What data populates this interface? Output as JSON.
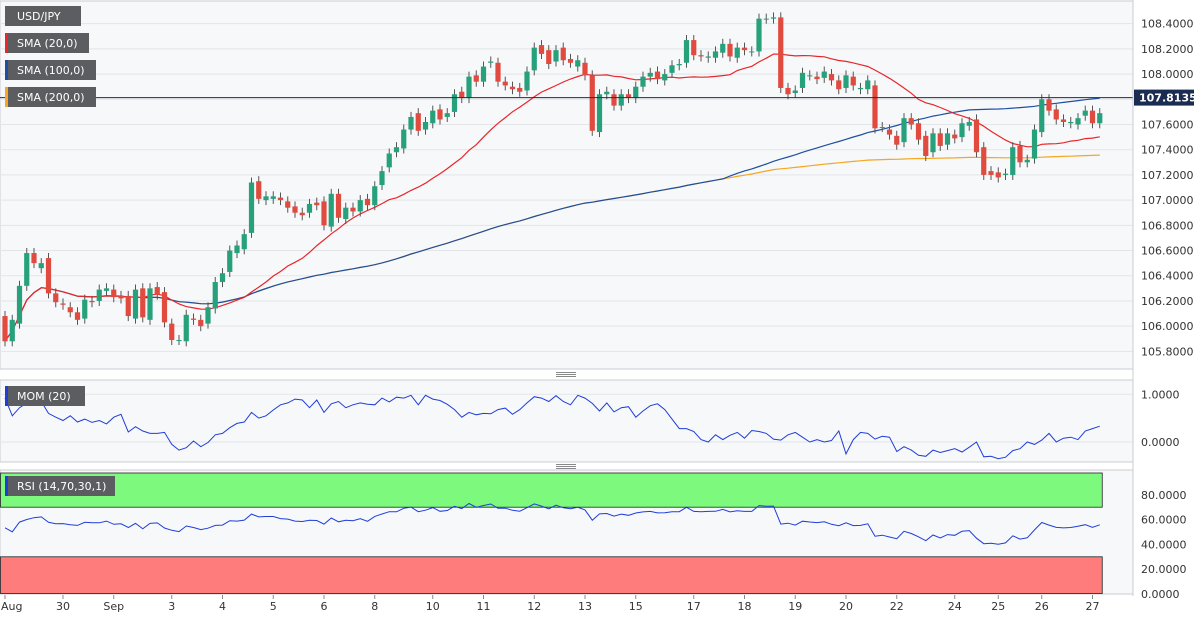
{
  "chart_data": [
    {
      "type": "candlestick",
      "title": "USD/JPY",
      "indicators": [
        {
          "name": "SMA (20,0)",
          "color": "#e8262b"
        },
        {
          "name": "SMA (100,0)",
          "color": "#1e4fa0"
        },
        {
          "name": "SMA (200,0)",
          "color": "#f5a623"
        }
      ],
      "current_price": 107.8135,
      "current_price_label": "107.8135",
      "ylim": [
        105.66,
        108.58
      ],
      "yticks": [
        105.8,
        106.0,
        106.2,
        106.4,
        106.6,
        106.8,
        107.0,
        107.2,
        107.4,
        107.6,
        107.8,
        108.0,
        108.2,
        108.4
      ],
      "ytick_labels": [
        "105.8000",
        "106.0000",
        "106.2000",
        "106.4000",
        "106.6000",
        "106.8000",
        "107.0000",
        "107.2000",
        "107.4000",
        "107.6000",
        "107.8000",
        "108.0000",
        "108.2000",
        "108.4000"
      ],
      "xlabels": [
        "Aug",
        "30",
        "Sep",
        "3",
        "4",
        "5",
        "6",
        "8",
        "10",
        "11",
        "12",
        "13",
        "15",
        "17",
        "18",
        "19",
        "20",
        "22",
        "24",
        "25",
        "26",
        "27"
      ],
      "x_label_bar_index": [
        0,
        8,
        15,
        23,
        30,
        37,
        44,
        51,
        59,
        66,
        73,
        80,
        87,
        95,
        102,
        109,
        116,
        123,
        131,
        137,
        143,
        150
      ],
      "candle_close_up_color": "#26a17b",
      "candle_close_down_color": "#e04a3f",
      "candles": {
        "open": [
          106.08,
          105.88,
          106.02,
          106.32,
          106.58,
          106.46,
          106.54,
          106.26,
          106.18,
          106.15,
          106.11,
          106.06,
          106.2,
          106.2,
          106.28,
          106.29,
          106.24,
          106.24,
          106.06,
          106.3,
          106.05,
          106.31,
          106.27,
          106.02,
          105.89,
          105.88,
          106.06,
          106.05,
          106.02,
          106.14,
          106.35,
          106.43,
          106.58,
          106.61,
          106.74,
          107.15,
          107.0,
          107.01,
          107.02,
          106.99,
          106.95,
          106.9,
          106.9,
          106.98,
          106.99,
          106.79,
          107.05,
          106.85,
          106.94,
          106.91,
          107.01,
          106.96,
          107.12,
          107.26,
          107.38,
          107.41,
          107.56,
          107.69,
          107.56,
          107.61,
          107.72,
          107.66,
          107.7,
          107.86,
          107.81,
          107.99,
          107.94,
          108.09,
          108.09,
          107.94,
          107.9,
          107.89,
          107.87,
          108.03,
          108.23,
          108.19,
          108.1,
          108.21,
          108.12,
          108.06,
          108.09,
          107.99,
          107.54,
          107.84,
          107.84,
          107.75,
          107.84,
          107.81,
          107.9,
          107.98,
          108.02,
          107.95,
          108.01,
          108.07,
          108.09,
          108.27,
          108.15,
          108.13,
          108.13,
          108.17,
          108.24,
          108.13,
          108.21,
          108.18,
          108.18,
          108.44,
          108.44,
          108.45,
          107.89,
          107.85,
          107.89,
          107.99,
          107.98,
          107.97,
          108.0,
          107.95,
          107.89,
          107.98,
          107.88,
          107.88,
          107.91,
          107.58,
          107.56,
          107.51,
          107.46,
          107.65,
          107.61,
          107.51,
          107.38,
          107.53,
          107.44,
          107.52,
          107.5,
          107.59,
          107.64,
          107.42,
          107.23,
          107.22,
          107.2,
          107.2,
          107.43,
          107.3,
          107.33,
          107.54,
          107.8,
          107.72,
          107.64,
          107.61,
          107.6,
          107.67,
          107.71,
          107.61
        ],
        "close": [
          105.88,
          106.05,
          106.32,
          106.58,
          106.5,
          106.5,
          106.26,
          106.19,
          106.17,
          106.11,
          106.05,
          106.21,
          106.19,
          106.29,
          106.3,
          106.23,
          106.22,
          106.08,
          106.29,
          106.07,
          106.3,
          106.25,
          106.03,
          105.89,
          105.89,
          106.09,
          106.05,
          106.0,
          106.15,
          106.35,
          106.42,
          106.6,
          106.64,
          106.73,
          107.14,
          107.01,
          107.03,
          107.03,
          107.0,
          106.94,
          106.9,
          106.88,
          106.97,
          106.96,
          106.8,
          107.05,
          106.86,
          106.94,
          106.91,
          107.0,
          106.96,
          107.11,
          107.23,
          107.37,
          107.42,
          107.56,
          107.66,
          107.55,
          107.62,
          107.71,
          107.64,
          107.69,
          107.84,
          107.81,
          107.98,
          107.94,
          108.06,
          108.1,
          107.94,
          107.91,
          107.88,
          107.86,
          108.02,
          108.21,
          108.16,
          108.08,
          108.19,
          108.11,
          108.09,
          108.11,
          107.99,
          107.55,
          107.84,
          107.86,
          107.75,
          107.84,
          107.81,
          107.9,
          107.98,
          108.01,
          107.96,
          108.0,
          108.07,
          108.08,
          108.27,
          108.15,
          108.14,
          108.14,
          108.18,
          108.24,
          108.14,
          108.21,
          108.19,
          108.18,
          108.44,
          108.44,
          108.45,
          107.89,
          107.84,
          107.87,
          108.01,
          107.99,
          107.96,
          108.02,
          107.95,
          107.88,
          107.99,
          107.91,
          107.89,
          107.95,
          107.57,
          107.58,
          107.52,
          107.44,
          107.65,
          107.6,
          107.48,
          107.35,
          107.53,
          107.43,
          107.53,
          107.49,
          107.61,
          107.62,
          107.38,
          107.2,
          107.2,
          107.18,
          107.21,
          107.42,
          107.3,
          107.32,
          107.56,
          107.8,
          107.71,
          107.64,
          107.62,
          107.62,
          107.65,
          107.71,
          107.61,
          107.69
        ]
      }
    },
    {
      "type": "line",
      "title": "MOM (20)",
      "ylim": [
        -0.42,
        1.3
      ],
      "yticks": [
        0.0,
        1.0
      ],
      "ytick_labels": [
        "0.0000",
        "1.0000"
      ],
      "series": [
        {
          "name": "MOM (20)",
          "color": "#1f3ed8",
          "values": [
            0.92,
            0.55,
            0.72,
            0.82,
            0.83,
            0.85,
            0.6,
            0.52,
            0.45,
            0.55,
            0.42,
            0.48,
            0.41,
            0.45,
            0.38,
            0.52,
            0.58,
            0.21,
            0.32,
            0.23,
            0.18,
            0.18,
            0.2,
            -0.05,
            -0.17,
            -0.12,
            0.02,
            -0.1,
            -0.01,
            0.15,
            0.18,
            0.3,
            0.39,
            0.42,
            0.62,
            0.5,
            0.55,
            0.67,
            0.78,
            0.82,
            0.9,
            0.88,
            0.72,
            0.88,
            0.62,
            0.8,
            0.85,
            0.72,
            0.78,
            0.82,
            0.79,
            0.78,
            0.92,
            0.84,
            0.94,
            0.92,
            0.98,
            0.78,
            0.98,
            0.9,
            0.87,
            0.79,
            0.68,
            0.52,
            0.62,
            0.57,
            0.6,
            0.59,
            0.68,
            0.71,
            0.58,
            0.68,
            0.82,
            0.95,
            0.92,
            0.85,
            0.97,
            0.85,
            0.78,
            0.98,
            0.92,
            0.81,
            0.65,
            0.82,
            0.63,
            0.72,
            0.74,
            0.52,
            0.65,
            0.76,
            0.8,
            0.68,
            0.48,
            0.28,
            0.28,
            0.22,
            0.05,
            0.0,
            0.15,
            0.05,
            0.14,
            0.2,
            0.08,
            0.24,
            0.22,
            0.18,
            0.06,
            0.04,
            0.15,
            0.2,
            0.1,
            0.0,
            0.05,
            0.0,
            0.03,
            0.23,
            -0.25,
            0.05,
            0.2,
            0.18,
            0.06,
            0.12,
            0.1,
            -0.2,
            -0.1,
            -0.17,
            -0.28,
            -0.3,
            -0.17,
            -0.22,
            -0.18,
            -0.14,
            -0.21,
            -0.11,
            0.0,
            -0.31,
            -0.3,
            -0.35,
            -0.32,
            -0.18,
            -0.14,
            0.0,
            -0.05,
            0.04,
            0.18,
            0.0,
            0.08,
            0.1,
            0.05,
            0.23,
            0.28,
            0.33
          ]
        }
      ]
    },
    {
      "type": "line",
      "title": "RSI (14,70,30,1)",
      "ylim": [
        0,
        100
      ],
      "yticks": [
        0,
        20,
        40,
        60,
        80
      ],
      "ytick_labels": [
        "0.0000",
        "20.0000",
        "40.0000",
        "60.0000",
        "80.0000"
      ],
      "overbought": 70,
      "oversold": 30,
      "zone_colors": {
        "overbought": "#7dfa7d",
        "oversold": "#ff7c7c"
      },
      "series": [
        {
          "name": "RSI (14,70,30,1)",
          "color": "#1f3ed8",
          "values": [
            53.4,
            50.2,
            58.0,
            60.1,
            61.5,
            62.2,
            57.8,
            56.7,
            56.8,
            55.8,
            55.3,
            57.8,
            57.5,
            57.4,
            58.8,
            56.2,
            56.6,
            53.6,
            56.9,
            52.6,
            56.9,
            57.3,
            53.2,
            51.4,
            50.3,
            54.8,
            53.6,
            51.9,
            53.1,
            55.3,
            55.6,
            59.1,
            58.8,
            59.6,
            64.4,
            62.2,
            62.5,
            62.5,
            60.8,
            60.4,
            58.8,
            58.5,
            59.5,
            59.3,
            56.4,
            61.3,
            58.2,
            59.5,
            59.1,
            60.8,
            58.6,
            62.6,
            64.5,
            66.4,
            66.3,
            69.1,
            70.1,
            66.4,
            67.6,
            69.7,
            66.7,
            67.3,
            70.7,
            68.9,
            73.0,
            69.9,
            71.4,
            72.6,
            69.1,
            69.2,
            67.5,
            66.8,
            69.6,
            72.7,
            70.9,
            68.7,
            71.6,
            69.5,
            68.8,
            69.9,
            67.8,
            59.5,
            64.6,
            64.9,
            62.8,
            64.4,
            63.5,
            65.3,
            66.2,
            66.6,
            65.4,
            65.6,
            66.3,
            66.4,
            69.9,
            66.6,
            66.3,
            66.6,
            66.7,
            68.2,
            66.2,
            67.2,
            66.6,
            66.6,
            71.3,
            70.8,
            70.9,
            56.4,
            57.1,
            55.6,
            58.7,
            58.1,
            57.6,
            58.2,
            56.2,
            55.1,
            57.4,
            55.2,
            55.3,
            56.6,
            46.6,
            47.4,
            46.0,
            44.6,
            50.6,
            48.8,
            46.1,
            43.0,
            47.6,
            45.2,
            47.9,
            47.3,
            50.6,
            51.1,
            45.0,
            40.6,
            40.9,
            40.1,
            41.2,
            46.9,
            44.3,
            45.3,
            51.7,
            57.7,
            55.6,
            53.7,
            53.3,
            53.6,
            54.6,
            55.9,
            53.8,
            55.8
          ]
        }
      ]
    }
  ]
}
